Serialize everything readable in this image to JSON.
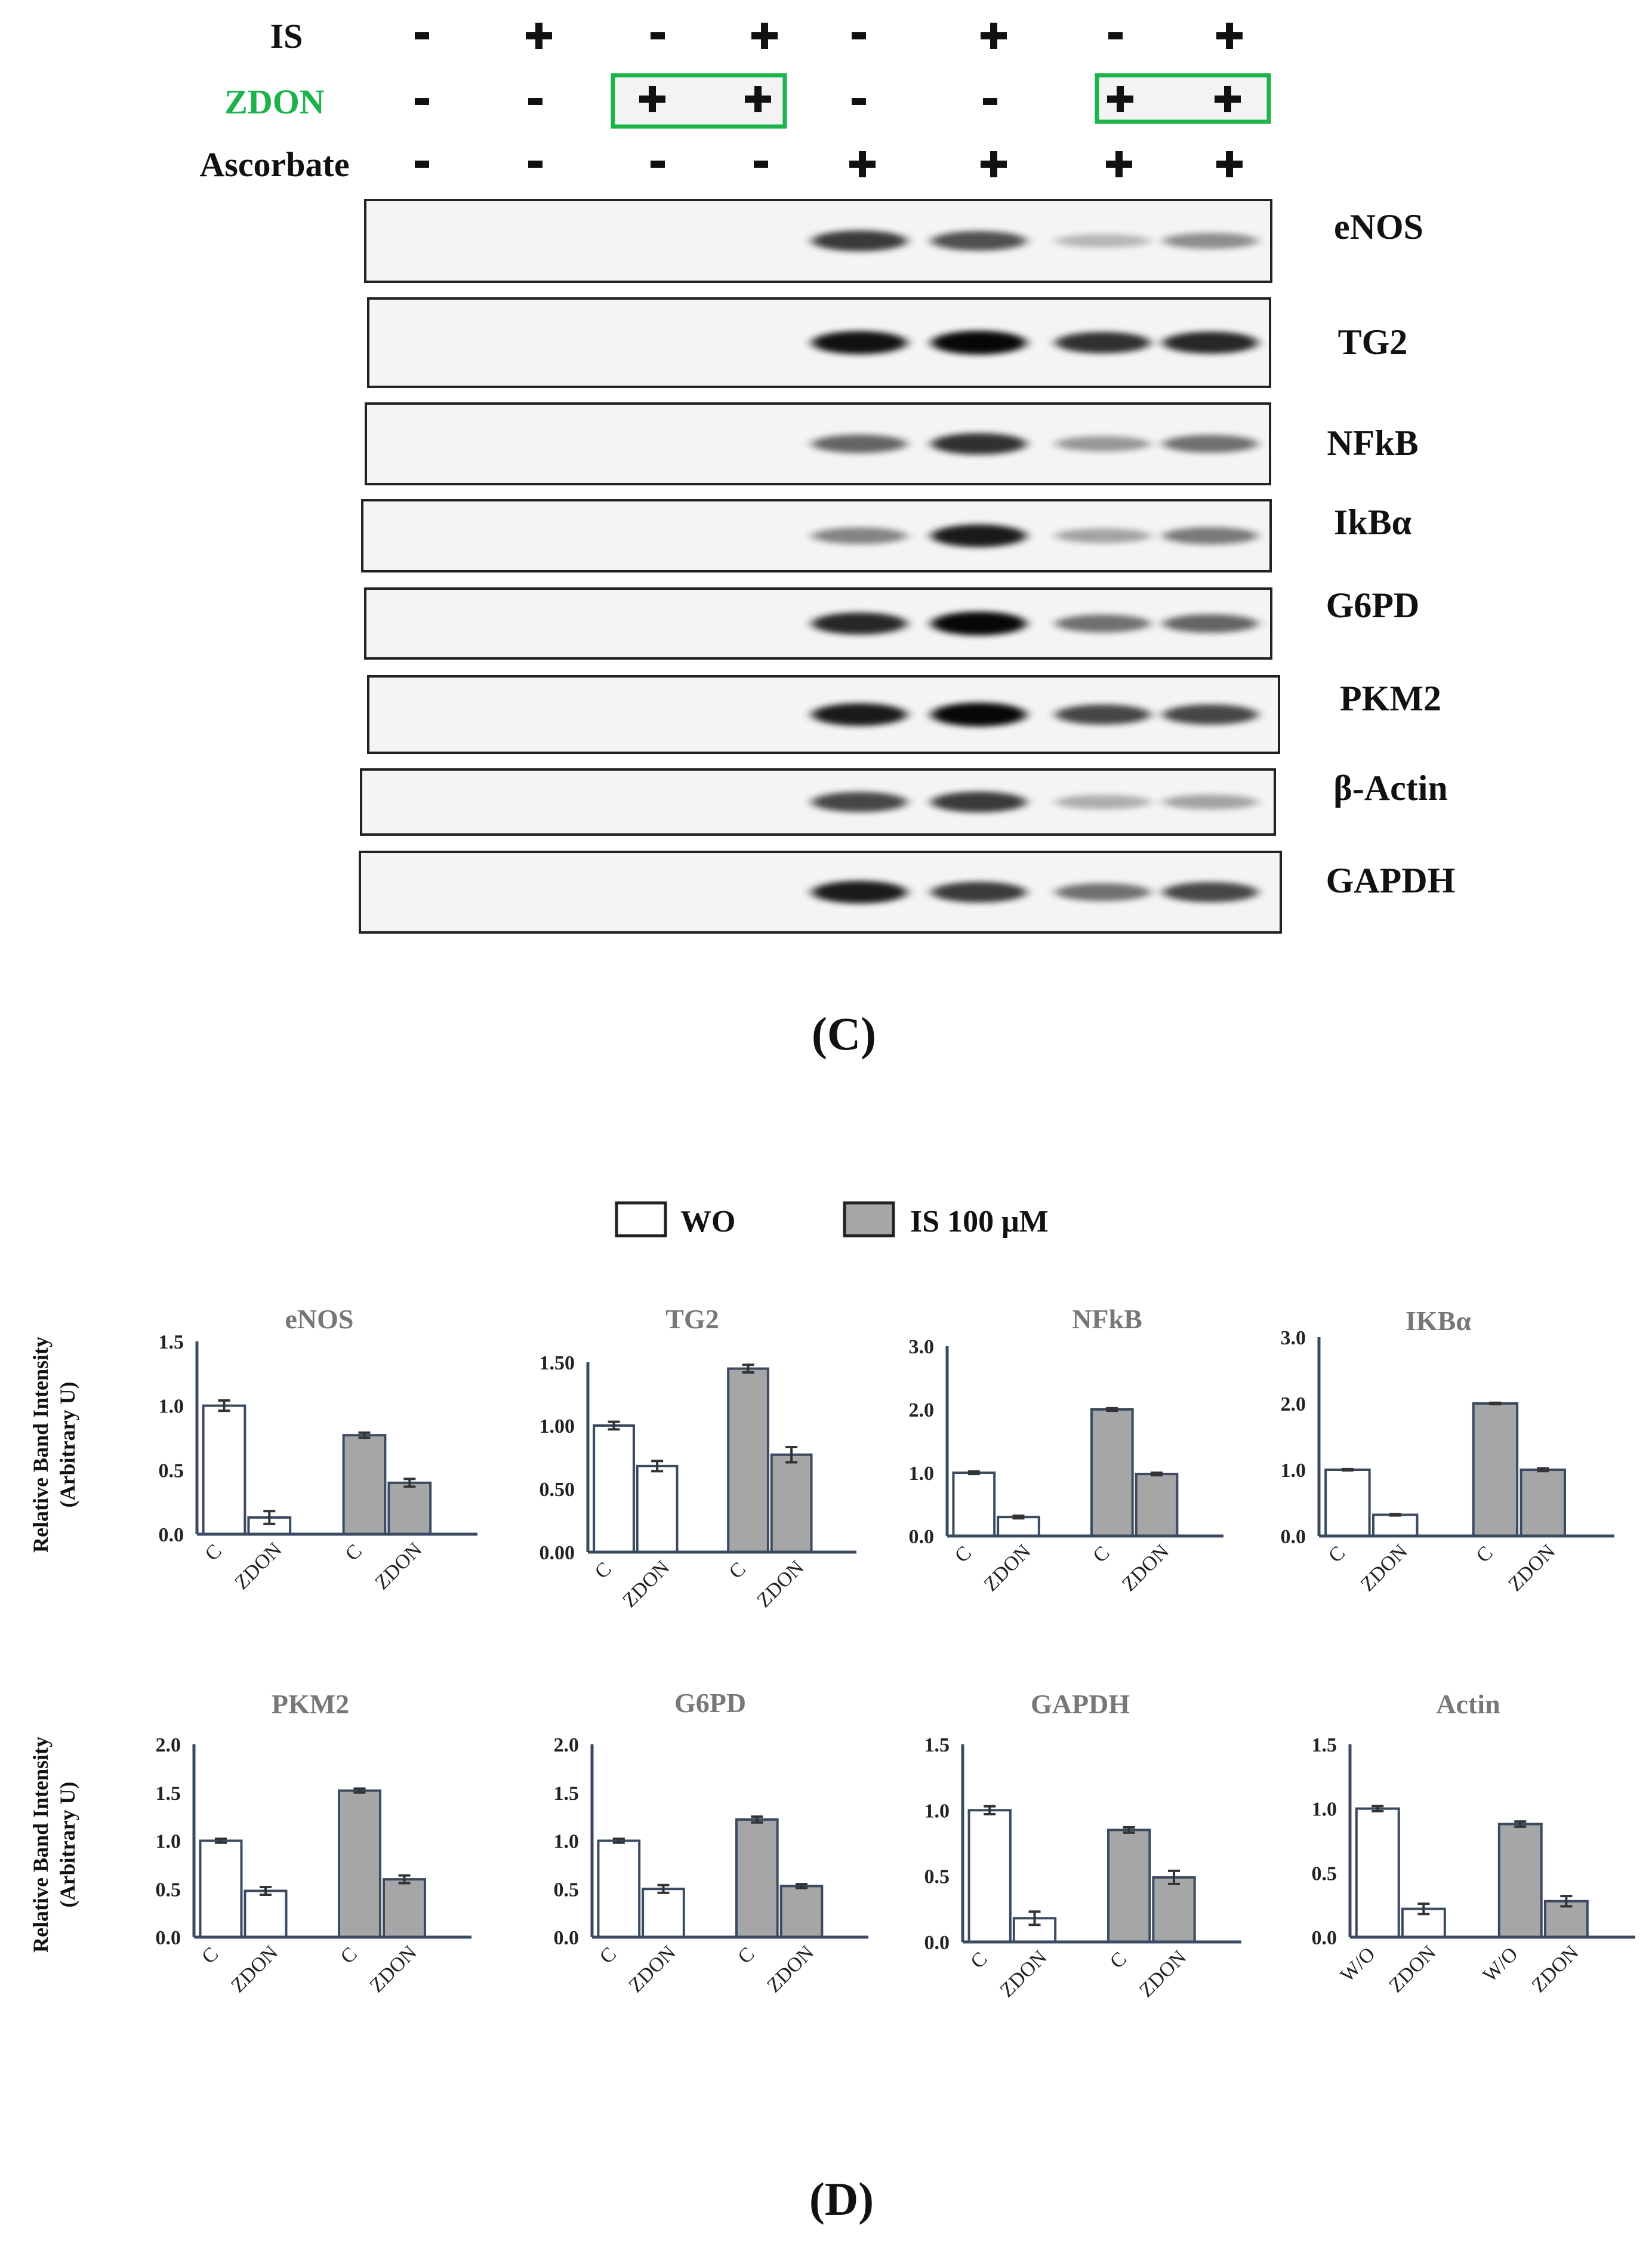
{
  "blot": {
    "rows": [
      {
        "label": "IS",
        "signs": [
          "-",
          "+",
          "-",
          "+",
          "-",
          "+",
          "-",
          "+"
        ]
      },
      {
        "label": "ZDON",
        "signs": [
          "-",
          "-",
          "+",
          "+",
          "-",
          "-",
          "+",
          "+"
        ],
        "color": "#1bb34a"
      },
      {
        "label": "Ascorbate",
        "signs": [
          "-",
          "-",
          "-",
          "-",
          "+",
          "+",
          "+",
          "+"
        ]
      }
    ],
    "highlight_color": "#1bb34a",
    "proteins": [
      "eNOS",
      "TG2",
      "NFkB",
      "IkBα",
      "G6PD",
      "PKM2",
      "β-Actin",
      "GAPDH"
    ],
    "band_intensity": [
      [
        0,
        0,
        0,
        0,
        0.75,
        0.65,
        0.15,
        0.35
      ],
      [
        0,
        0,
        0,
        0,
        0.95,
        1.0,
        0.8,
        0.85
      ],
      [
        0,
        0,
        0,
        0,
        0.55,
        0.8,
        0.3,
        0.5
      ],
      [
        0,
        0,
        0,
        0,
        0.4,
        0.9,
        0.25,
        0.45
      ],
      [
        0,
        0,
        0,
        0,
        0.85,
        1.0,
        0.5,
        0.55
      ],
      [
        0,
        0,
        0,
        0,
        0.9,
        1.0,
        0.7,
        0.7
      ],
      [
        0,
        0,
        0,
        0,
        0.7,
        0.75,
        0.2,
        0.25
      ],
      [
        0,
        0,
        0,
        0,
        0.9,
        0.75,
        0.5,
        0.7
      ]
    ],
    "panel_label": "(C)"
  },
  "legend": {
    "wo_label": "WO",
    "is_label": "IS 100 μM",
    "wo_color": "#ffffff",
    "is_color": "#a6a6a6"
  },
  "y_axis_title": [
    "Relative Band Intensity",
    "(Arbitrary U)"
  ],
  "panel_label_d": "(D)",
  "chart_data": [
    {
      "type": "bar",
      "title": "eNOS",
      "categories": [
        "C",
        "ZDON",
        "C",
        "ZDON"
      ],
      "values": [
        1.0,
        0.13,
        0.77,
        0.4
      ],
      "errors": [
        0.04,
        0.05,
        0.02,
        0.03
      ],
      "fills": [
        "wo",
        "wo",
        "is",
        "is"
      ],
      "ylim": [
        0,
        1.5
      ],
      "ticks": [
        "0.0",
        "0.5",
        "1.0",
        "1.5"
      ]
    },
    {
      "type": "bar",
      "title": "TG2",
      "categories": [
        "C",
        "ZDON",
        "C",
        "ZDON"
      ],
      "values": [
        1.0,
        0.68,
        1.45,
        0.77
      ],
      "errors": [
        0.03,
        0.04,
        0.03,
        0.06
      ],
      "fills": [
        "wo",
        "wo",
        "is",
        "is"
      ],
      "ylim": [
        0,
        1.5
      ],
      "ticks": [
        "0.00",
        "0.50",
        "1.00",
        "1.50"
      ]
    },
    {
      "type": "bar",
      "title": "NFkB",
      "categories": [
        "C",
        "ZDON",
        "C",
        "ZDON"
      ],
      "values": [
        1.0,
        0.3,
        2.0,
        0.98
      ],
      "errors": [
        0.02,
        0.02,
        0.02,
        0.02
      ],
      "fills": [
        "wo",
        "wo",
        "is",
        "is"
      ],
      "ylim": [
        0,
        3.0
      ],
      "ticks": [
        "0.0",
        "1.0",
        "2.0",
        "3.0"
      ]
    },
    {
      "type": "bar",
      "title": "IKBα",
      "categories": [
        "C",
        "ZDON",
        "C",
        "ZDON"
      ],
      "values": [
        1.0,
        0.32,
        2.0,
        1.0
      ],
      "errors": [
        0.01,
        0.01,
        0.01,
        0.02
      ],
      "fills": [
        "wo",
        "wo",
        "is",
        "is"
      ],
      "ylim": [
        0,
        3.0
      ],
      "ticks": [
        "0.0",
        "1.0",
        "2.0",
        "3.0"
      ]
    },
    {
      "type": "bar",
      "title": "PKM2",
      "categories": [
        "C",
        "ZDON",
        "C",
        "ZDON"
      ],
      "values": [
        1.0,
        0.48,
        1.52,
        0.6
      ],
      "errors": [
        0.02,
        0.04,
        0.02,
        0.04
      ],
      "fills": [
        "wo",
        "wo",
        "is",
        "is"
      ],
      "ylim": [
        0,
        2.0
      ],
      "ticks": [
        "0.0",
        "0.5",
        "1.0",
        "1.5",
        "2.0"
      ]
    },
    {
      "type": "bar",
      "title": "G6PD",
      "categories": [
        "C",
        "ZDON",
        "C",
        "ZDON"
      ],
      "values": [
        1.0,
        0.5,
        1.22,
        0.53
      ],
      "errors": [
        0.02,
        0.04,
        0.03,
        0.02
      ],
      "fills": [
        "wo",
        "wo",
        "is",
        "is"
      ],
      "ylim": [
        0,
        2.0
      ],
      "ticks": [
        "0.0",
        "0.5",
        "1.0",
        "1.5",
        "2.0"
      ]
    },
    {
      "type": "bar",
      "title": "GAPDH",
      "categories": [
        "C",
        "ZDON",
        "C",
        "ZDON"
      ],
      "values": [
        1.0,
        0.18,
        0.85,
        0.49
      ],
      "errors": [
        0.03,
        0.05,
        0.02,
        0.05
      ],
      "fills": [
        "wo",
        "wo",
        "is",
        "is"
      ],
      "ylim": [
        0,
        1.5
      ],
      "ticks": [
        "0.0",
        "0.5",
        "1.0",
        "1.5"
      ]
    },
    {
      "type": "bar",
      "title": "Actin",
      "categories": [
        "W/O",
        "ZDON",
        "W/O",
        "ZDON"
      ],
      "values": [
        1.0,
        0.22,
        0.88,
        0.28
      ],
      "errors": [
        0.02,
        0.04,
        0.02,
        0.04
      ],
      "fills": [
        "wo",
        "wo",
        "is",
        "is"
      ],
      "ylim": [
        0,
        1.5
      ],
      "ticks": [
        "0.0",
        "0.5",
        "1.0",
        "1.5"
      ]
    }
  ]
}
